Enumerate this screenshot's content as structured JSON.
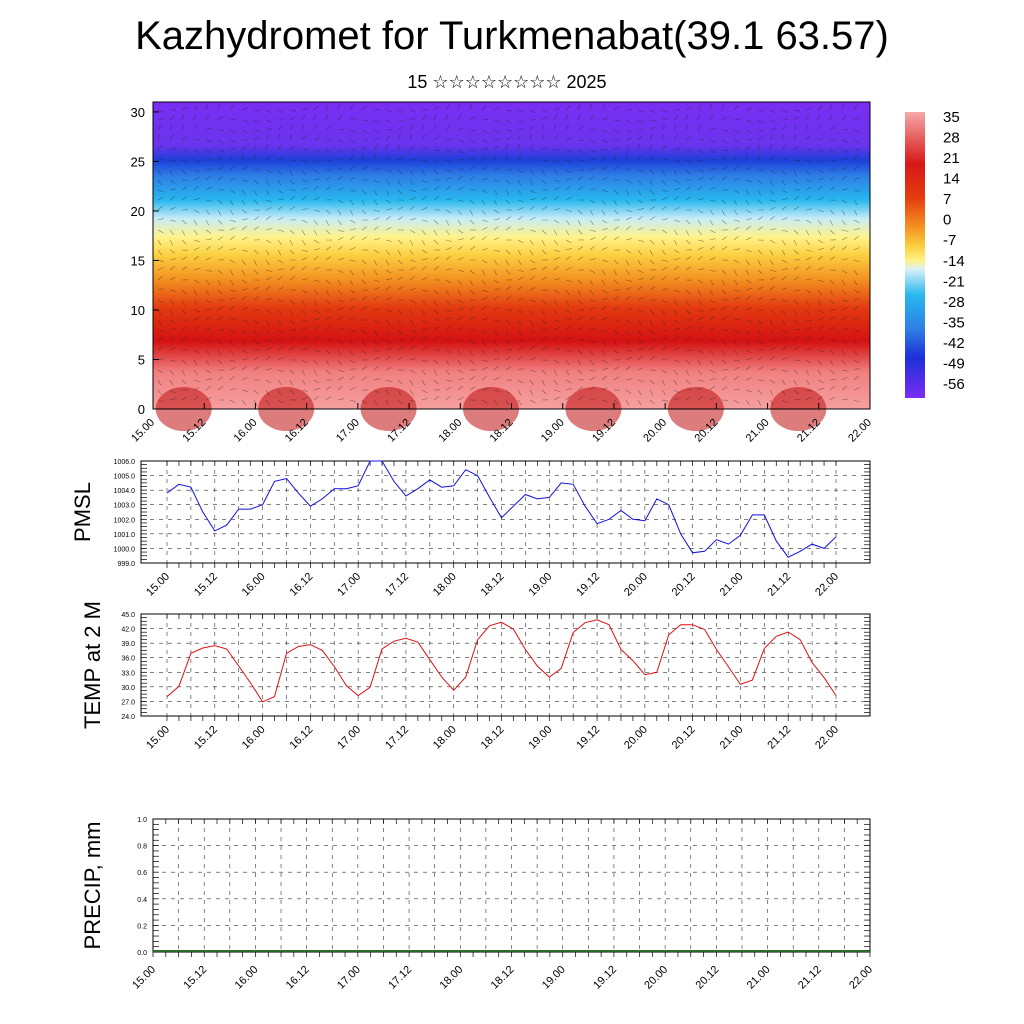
{
  "title": "Kazhydromet for Turkmenabat(39.1 63.57)",
  "subtitle": "15 ☆☆☆☆☆☆☆☆ 2025",
  "chart_data": [
    {
      "type": "heatmap",
      "name": "vertical-section",
      "xticks": [
        "15.00",
        "15.12",
        "16.00",
        "16.12",
        "17.00",
        "17.12",
        "18.00",
        "18.12",
        "19.00",
        "19.12",
        "20.00",
        "20.12",
        "21.00",
        "21.12",
        "22.00"
      ],
      "yticks": [
        0,
        5,
        10,
        15,
        20,
        25,
        30
      ],
      "ylim": [
        0,
        31
      ],
      "colorbar_labels": [
        "35",
        "28",
        "21",
        "14",
        "7",
        "0",
        "-7",
        "-14",
        "-21",
        "-28",
        "-35",
        "-42",
        "-49",
        "-56"
      ],
      "colors": {
        "hot": "#f6a0a0",
        "red": "#d11010",
        "orange": "#f39020",
        "yellow": "#fff38a",
        "cyan": "#28b8ee",
        "blue": "#1d55e0",
        "purple": "#7a2ef2"
      }
    },
    {
      "type": "line",
      "name": "pmsl",
      "ylabel": "PMSL",
      "ylim": [
        999.0,
        1006.0
      ],
      "yticks": [
        "999.0",
        "1000.0",
        "1001.0",
        "1002.0",
        "1003.0",
        "1004.0",
        "1005.0",
        "1006.0"
      ],
      "xticks": [
        "15.00",
        "15.12",
        "16.00",
        "16.12",
        "17.00",
        "17.12",
        "18.00",
        "18.12",
        "19.00",
        "19.12",
        "20.00",
        "20.12",
        "21.00",
        "21.12",
        "22.00"
      ],
      "color": "#1010e0",
      "values": [
        1003.8,
        1004.4,
        1004.2,
        1002.5,
        1001.2,
        1001.6,
        1002.7,
        1002.7,
        1003.0,
        1004.6,
        1004.8,
        1003.8,
        1002.9,
        1003.4,
        1004.1,
        1004.1,
        1004.3,
        1006.0,
        1006.0,
        1004.6,
        1003.6,
        1004.1,
        1004.7,
        1004.2,
        1004.3,
        1005.4,
        1005.0,
        1003.5,
        1002.1,
        1002.9,
        1003.7,
        1003.4,
        1003.5,
        1004.5,
        1004.4,
        1002.9,
        1001.7,
        1002.0,
        1002.6,
        1002.0,
        1001.9,
        1003.4,
        1003.0,
        1001.0,
        999.7,
        999.8,
        1000.6,
        1000.3,
        1000.9,
        1002.3,
        1002.3,
        1000.5,
        999.4,
        999.8,
        1000.3,
        1000.0,
        1000.8
      ]
    },
    {
      "type": "line",
      "name": "temp-2m",
      "ylabel": "TEMP at 2 M",
      "ylim": [
        24.0,
        45.0
      ],
      "yticks": [
        "24.0",
        "27.0",
        "30.0",
        "33.0",
        "36.0",
        "39.0",
        "42.0",
        "45.0"
      ],
      "xticks": [
        "15.00",
        "15.12",
        "16.00",
        "16.12",
        "17.00",
        "17.12",
        "18.00",
        "18.12",
        "19.00",
        "19.12",
        "20.00",
        "20.12",
        "21.00",
        "21.12",
        "22.00"
      ],
      "color": "#e01010",
      "values": [
        28.0,
        30.1,
        36.9,
        38.0,
        38.5,
        37.8,
        34.3,
        30.8,
        26.9,
        28.0,
        36.9,
        38.3,
        38.7,
        37.5,
        34.2,
        30.3,
        28.2,
        29.9,
        37.8,
        39.4,
        40.0,
        39.2,
        35.6,
        32.0,
        29.3,
        32.0,
        39.7,
        42.6,
        43.3,
        41.9,
        37.7,
        34.3,
        32.0,
        33.8,
        41.2,
        43.2,
        43.8,
        42.8,
        37.7,
        35.4,
        32.5,
        33.0,
        40.7,
        42.8,
        42.8,
        41.8,
        37.7,
        34.1,
        30.5,
        31.4,
        37.9,
        40.4,
        41.3,
        39.7,
        35.0,
        31.9,
        28.2
      ]
    },
    {
      "type": "bar",
      "name": "precip",
      "ylabel": "PRECIP, mm",
      "ylim": [
        0.0,
        1.0
      ],
      "yticks": [
        "0.0",
        "0.2",
        "0.4",
        "0.6",
        "0.8",
        "1.0"
      ],
      "xticks": [
        "15.00",
        "15.12",
        "16.00",
        "16.12",
        "17.00",
        "17.12",
        "18.00",
        "18.12",
        "19.00",
        "19.12",
        "20.00",
        "20.12",
        "21.00",
        "21.12",
        "22.00"
      ],
      "color": "#2a6a2a",
      "values": [
        0,
        0,
        0,
        0,
        0,
        0,
        0,
        0,
        0,
        0,
        0,
        0,
        0,
        0,
        0,
        0,
        0,
        0,
        0,
        0,
        0,
        0,
        0,
        0,
        0,
        0,
        0,
        0,
        0,
        0,
        0,
        0,
        0,
        0,
        0,
        0,
        0,
        0,
        0,
        0,
        0,
        0,
        0,
        0,
        0,
        0,
        0,
        0,
        0,
        0,
        0,
        0,
        0,
        0,
        0,
        0,
        0
      ]
    }
  ]
}
